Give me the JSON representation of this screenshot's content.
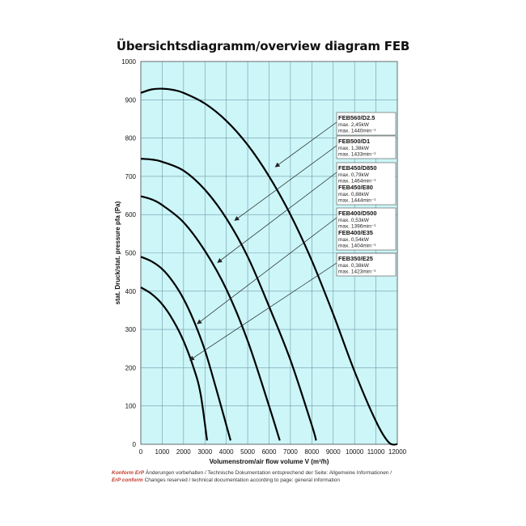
{
  "chart_data": {
    "type": "line",
    "title": "Übersichtsdiagramm/overview diagram FEB",
    "xlabel": "Volumenstrom/air flow volume V (m³/h)",
    "ylabel": "stat. Druck/stat. pressure pfa (Pa)",
    "xlim": [
      0,
      12000
    ],
    "ylim": [
      0,
      1000
    ],
    "xticks": [
      "0",
      "1000",
      "2000",
      "3000",
      "4000",
      "5000",
      "6000",
      "7000",
      "8000",
      "9000",
      "10000",
      "11000",
      "12000"
    ],
    "yticks": [
      "0",
      "100",
      "200",
      "300",
      "400",
      "500",
      "600",
      "700",
      "800",
      "900",
      "1000"
    ],
    "grid": true,
    "series": [
      {
        "x": [
          0,
          500,
          1000,
          1500,
          2000,
          3000,
          4000,
          5000,
          6000,
          7000,
          8000,
          9000,
          10000,
          11000,
          11600,
          12000
        ],
        "values": [
          918,
          927,
          929,
          926,
          918,
          890,
          845,
          782,
          700,
          600,
          480,
          340,
          190,
          60,
          5,
          0
        ]
      },
      {
        "x": [
          0,
          500,
          1000,
          2000,
          3000,
          4000,
          5000,
          6000,
          7000,
          8000,
          8200
        ],
        "values": [
          746,
          744,
          738,
          715,
          665,
          590,
          490,
          360,
          220,
          50,
          10
        ]
      },
      {
        "x": [
          0,
          500,
          1000,
          2000,
          3000,
          4000,
          5000,
          6000,
          6500
        ],
        "values": [
          648,
          640,
          625,
          580,
          505,
          405,
          270,
          100,
          10
        ]
      },
      {
        "x": [
          0,
          500,
          1000,
          1500,
          2000,
          2500,
          3000,
          3500,
          4000,
          4200
        ],
        "values": [
          490,
          478,
          458,
          425,
          380,
          320,
          245,
          150,
          50,
          10
        ]
      },
      {
        "x": [
          0,
          500,
          1000,
          1500,
          2000,
          2500,
          2800,
          3100
        ],
        "values": [
          410,
          393,
          366,
          325,
          270,
          195,
          130,
          10
        ]
      }
    ],
    "annotations": [
      {
        "title": "FEB560/D2.5",
        "lines": [
          "max. 2,45kW",
          "max. 1440min⁻¹"
        ],
        "points_to": [
          [
            6300,
            725
          ]
        ]
      },
      {
        "title": "FEB500/D1",
        "lines": [
          "max. 1,38kW",
          "max. 1433min⁻¹"
        ],
        "points_to": [
          [
            4400,
            585
          ]
        ]
      },
      {
        "title": "FEB450/D850",
        "lines": [
          "max. 0,79kW",
          "max. 1464min⁻¹"
        ],
        "points_to": [
          [
            3600,
            475
          ]
        ]
      },
      {
        "title": "FEB450/E80",
        "lines": [
          "max. 0,88kW",
          "max. 1444min⁻¹"
        ],
        "points_to": []
      },
      {
        "title": "FEB400/D500",
        "lines": [
          "max. 0,53kW",
          "max. 1396min⁻¹"
        ],
        "points_to": [
          [
            2650,
            315
          ]
        ]
      },
      {
        "title": "FEB400/E35",
        "lines": [
          "max. 0,54kW",
          "max. 1404min⁻¹"
        ],
        "points_to": []
      },
      {
        "title": "FEB350/E25",
        "lines": [
          "max. 0,38kW",
          "max. 1423min⁻¹"
        ],
        "points_to": [
          [
            2300,
            220
          ]
        ]
      }
    ]
  },
  "footer": {
    "line1_prefix": "Konform ErP",
    "line1_text": " Änderungen vorbehalten / Technische Dokumentation entsprechend der Seite: Allgemeine Informationen /",
    "line2_prefix": "ErP conform",
    "line2_text": " Changes reserved / technical documentation according to page: general information"
  },
  "colors": {
    "plot_bg": "#ccf6f8",
    "grid": "#6f9aa8",
    "curve": "#000000",
    "box_bg": "#ffffff"
  }
}
